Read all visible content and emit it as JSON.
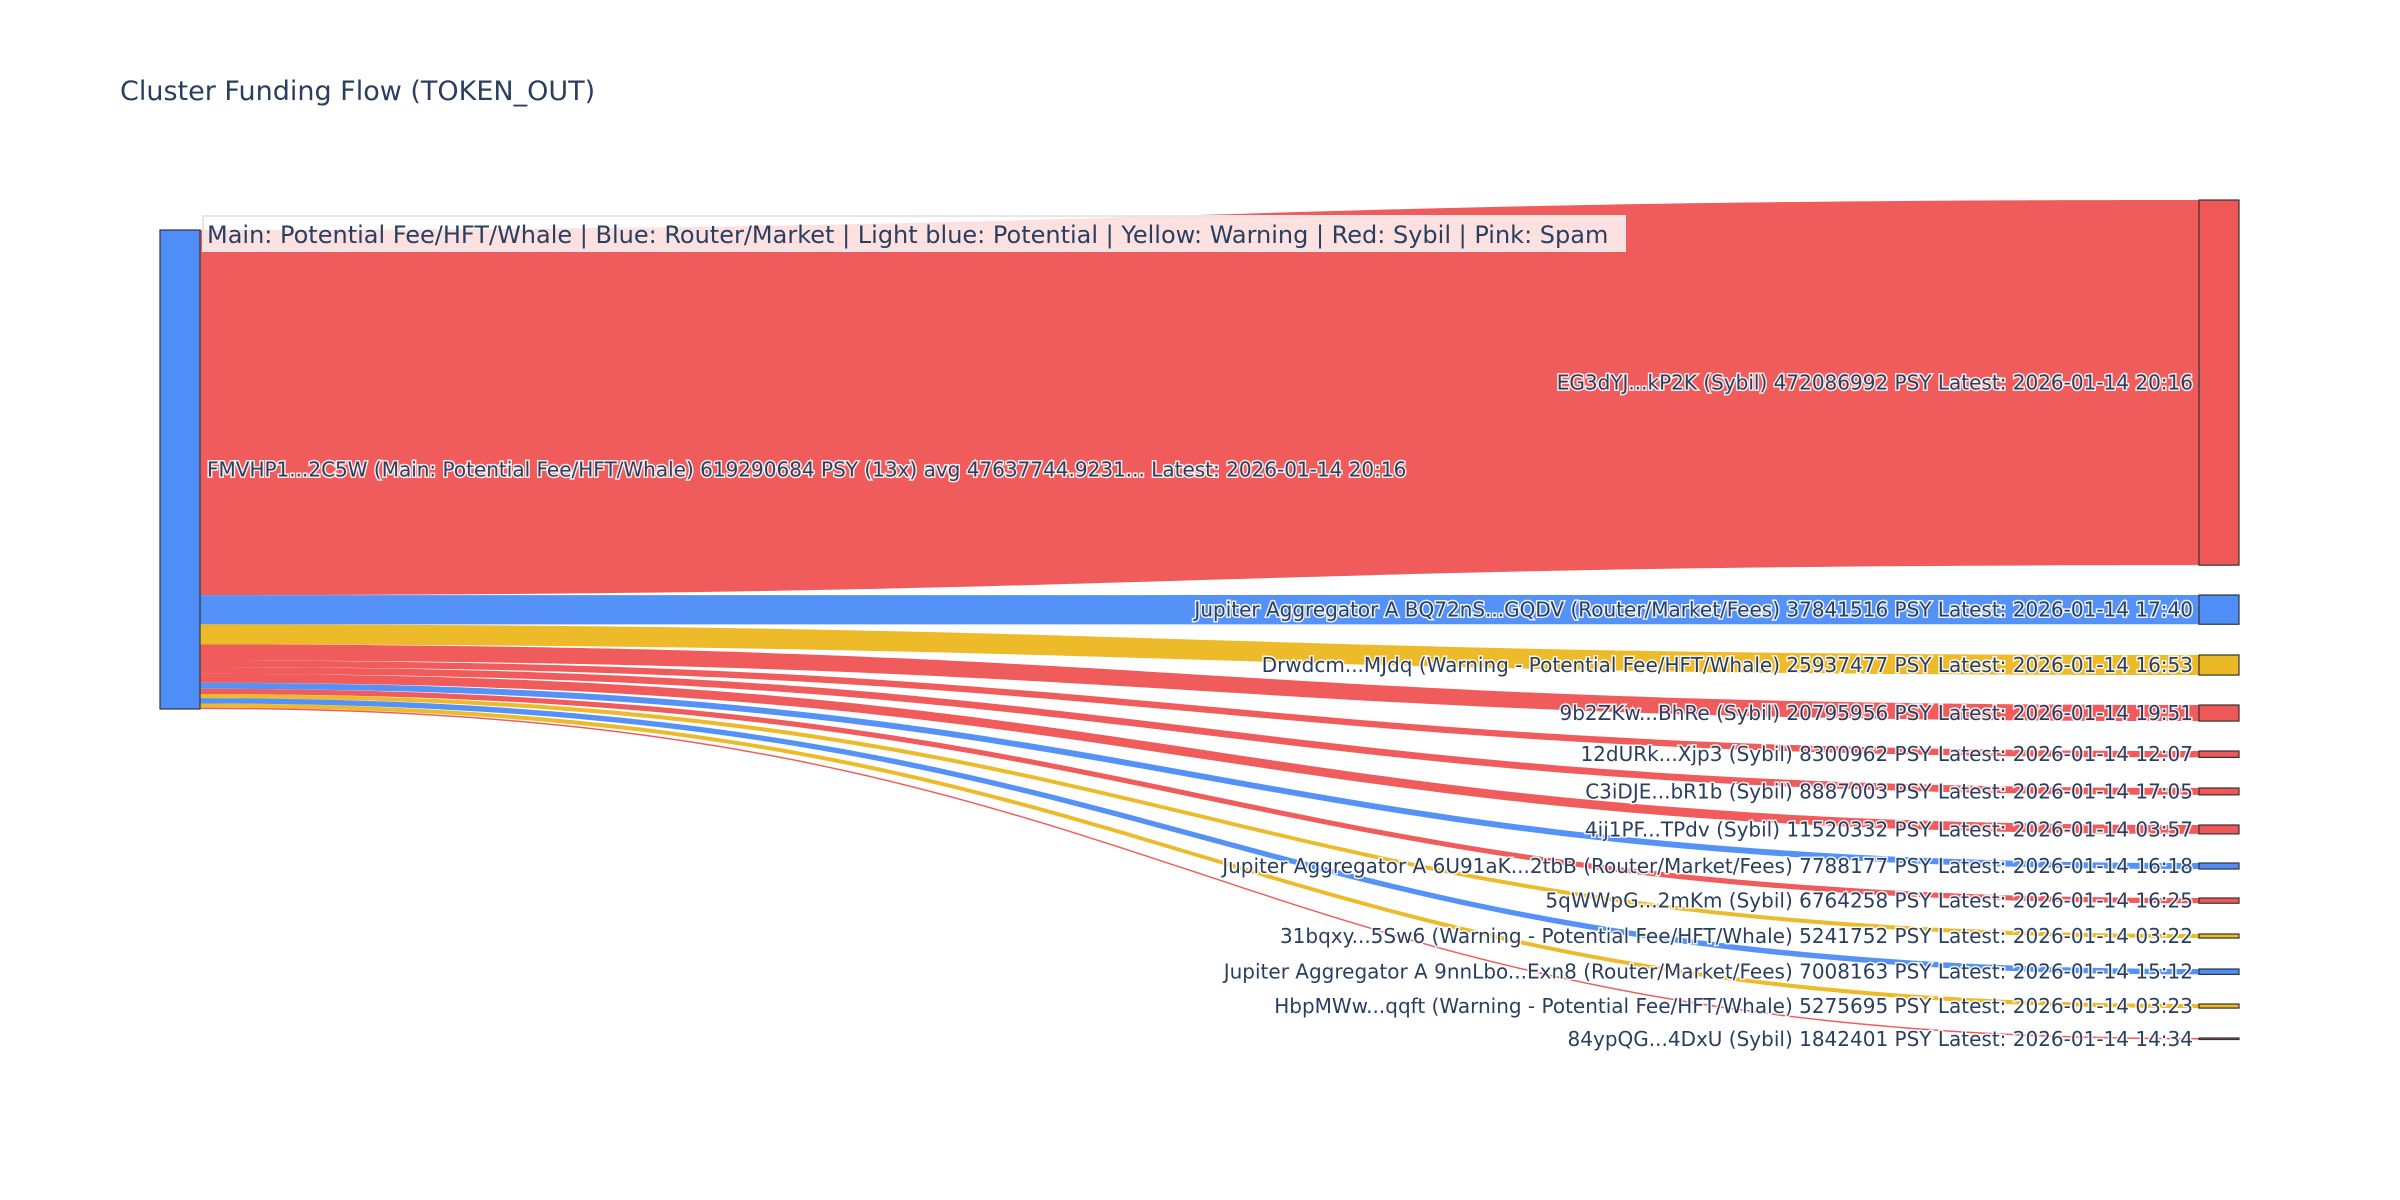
{
  "chart_data": {
    "type": "sankey",
    "title": "Cluster Funding Flow (TOKEN_OUT)",
    "legend_text": "Main: Potential Fee/HFT/Whale  |  Blue: Router/Market | Light blue: Potential | Yellow: Warning | Red: Sybil | Pink: Spam",
    "colors": {
      "red": "#f05757",
      "blue": "#4f8ef7",
      "yellow": "#ecb823"
    },
    "source": {
      "label": "FMVHP1...2C5W (Main: Potential Fee/HFT/Whale) 619290684 PSY (13x) avg 47637744.9231... Latest: 2026-01-14 20:16",
      "value": 619290684,
      "color": "blue"
    },
    "targets": [
      {
        "label": "EG3dYJ...kP2K (Sybil) 472086992 PSY Latest: 2026-01-14 20:16",
        "value": 472086992,
        "color": "red"
      },
      {
        "label": "Jupiter Aggregator A BQ72nS...GQDV (Router/Market/Fees) 37841516 PSY Latest: 2026-01-14 17:40",
        "value": 37841516,
        "color": "blue"
      },
      {
        "label": "Drwdcm...MJdq (Warning - Potential Fee/HFT/Whale) 25937477 PSY Latest: 2026-01-14 16:53",
        "value": 25937477,
        "color": "yellow"
      },
      {
        "label": "9b2ZKw...BhRe (Sybil) 20795956 PSY Latest: 2026-01-14 19:51",
        "value": 20795956,
        "color": "red"
      },
      {
        "label": "12dURk...Xjp3 (Sybil) 8300962 PSY Latest: 2026-01-14 12:07",
        "value": 8300962,
        "color": "red"
      },
      {
        "label": "C3iDJE...bR1b (Sybil) 8887003 PSY Latest: 2026-01-14 17:05",
        "value": 8887003,
        "color": "red"
      },
      {
        "label": "4ij1PF...TPdv (Sybil) 11520332 PSY Latest: 2026-01-14 03:57",
        "value": 11520332,
        "color": "red"
      },
      {
        "label": "Jupiter Aggregator A 6U91aK...2tbB (Router/Market/Fees) 7788177 PSY Latest: 2026-01-14 16:18",
        "value": 7788177,
        "color": "blue"
      },
      {
        "label": "5qWWpG...2mKm (Sybil) 6764258 PSY Latest: 2026-01-14 16:25",
        "value": 6764258,
        "color": "red"
      },
      {
        "label": "31bqxy...5Sw6 (Warning - Potential Fee/HFT/Whale) 5241752 PSY Latest: 2026-01-14 03:22",
        "value": 5241752,
        "color": "yellow"
      },
      {
        "label": "Jupiter Aggregator A 9nnLbo...Exn8 (Router/Market/Fees) 7008163 PSY Latest: 2026-01-14 15:12",
        "value": 7008163,
        "color": "blue"
      },
      {
        "label": "HbpMWw...qqft (Warning - Potential Fee/HFT/Whale) 5275695 PSY Latest: 2026-01-14 03:23",
        "value": 5275695,
        "color": "yellow"
      },
      {
        "label": "84ypQG...4DxU (Sybil) 1842401 PSY Latest: 2026-01-14 14:34",
        "value": 1842401,
        "color": "red"
      }
    ]
  }
}
